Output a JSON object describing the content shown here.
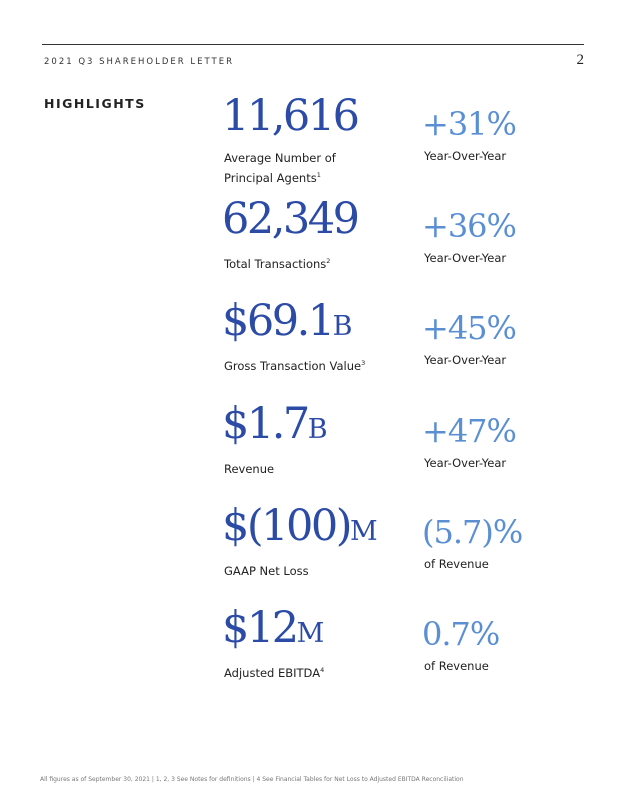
{
  "header": {
    "title": "2021 Q3 SHAREHOLDER LETTER",
    "page_number": "2"
  },
  "section_title": "HIGHLIGHTS",
  "metrics": [
    {
      "value": "11,616",
      "unit": "",
      "label": "Average Number of Principal Agents",
      "footnote": "1",
      "change": "+31%",
      "change_label": "Year-Over-Year"
    },
    {
      "value": "62,349",
      "unit": "",
      "label": "Total Transactions",
      "footnote": "2",
      "change": "+36%",
      "change_label": "Year-Over-Year"
    },
    {
      "value": "$69.1",
      "unit": "B",
      "label": "Gross Transaction Value",
      "footnote": "3",
      "change": "+45%",
      "change_label": "Year-Over-Year"
    },
    {
      "value": "$1.7",
      "unit": "B",
      "label": "Revenue",
      "footnote": "",
      "change": "+47%",
      "change_label": "Year-Over-Year"
    },
    {
      "value": "$(100)",
      "unit": "M",
      "label": "GAAP Net Loss",
      "footnote": "",
      "change": "(5.7)%",
      "change_label": "of Revenue"
    },
    {
      "value": "$12",
      "unit": "M",
      "label": "Adjusted EBITDA",
      "footnote": "4",
      "change": "0.7%",
      "change_label": "of Revenue"
    }
  ],
  "footnote": "All figures as of September 30, 2021 | 1, 2, 3 See Notes for definitions | 4 See Financial Tables for Net Loss to Adjusted EBITDA Reconciliation",
  "colors": {
    "primary_value": "#2b4ba6",
    "change_value": "#5a8fd4"
  }
}
